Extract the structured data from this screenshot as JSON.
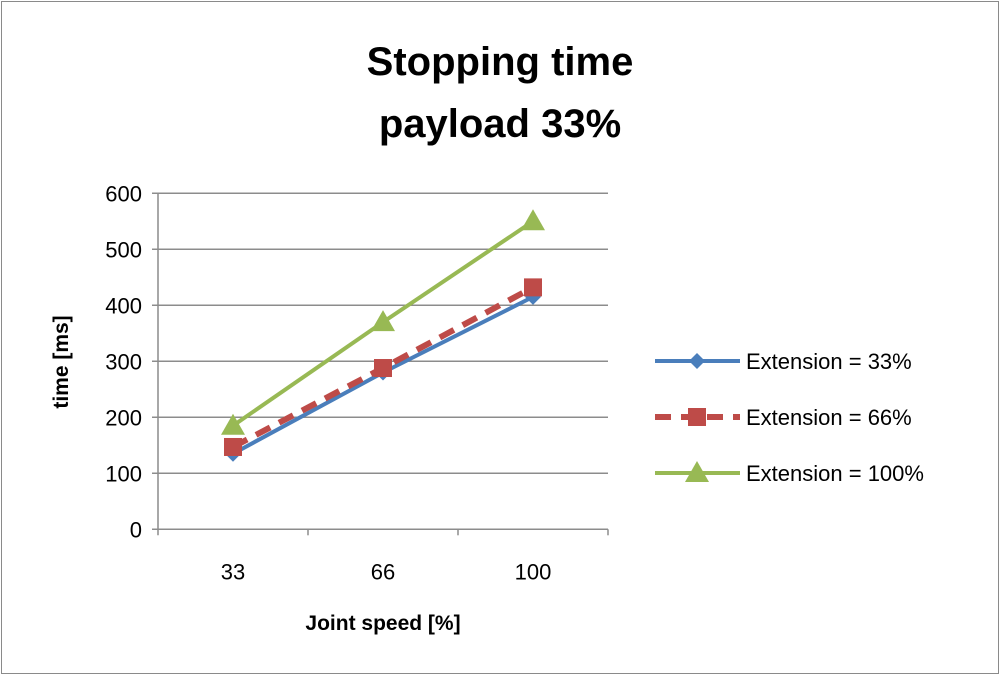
{
  "chart_data": {
    "type": "line",
    "title": [
      "Stopping time",
      "payload 33%"
    ],
    "xlabel": "Joint speed [%]",
    "ylabel": "time [ms]",
    "categories": [
      "33",
      "66",
      "100"
    ],
    "ylim": [
      0,
      600
    ],
    "yticks": [
      "0",
      "100",
      "200",
      "300",
      "400",
      "500",
      "600"
    ],
    "grid": true,
    "legend_position": "right",
    "series": [
      {
        "name": "Extension = 33%",
        "values": [
          135,
          280,
          415
        ],
        "color": "#4a7ebb",
        "marker": "diamond",
        "dash": false
      },
      {
        "name": "Extension = 66%",
        "values": [
          147,
          288,
          432
        ],
        "color": "#be4b48",
        "marker": "square",
        "dash": true
      },
      {
        "name": "Extension = 100%",
        "values": [
          185,
          370,
          550
        ],
        "color": "#98b954",
        "marker": "triangle",
        "dash": false
      }
    ]
  }
}
